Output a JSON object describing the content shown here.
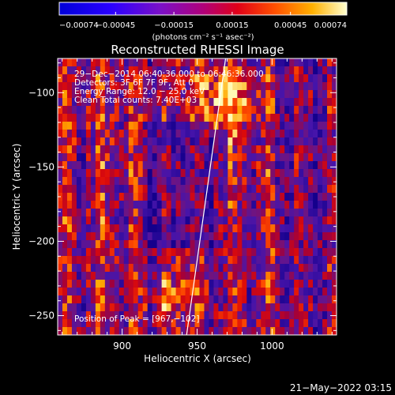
{
  "chart_data": {
    "type": "heatmap",
    "title": "Reconstructed RHESSI Image",
    "xlabel": "Heliocentric X (arcsec)",
    "ylabel": "Heliocentric Y (arcsec)",
    "xlim": [
      857,
      1043
    ],
    "ylim": [
      -263,
      -77
    ],
    "x_ticks": [
      900,
      950,
      1000
    ],
    "y_ticks": [
      -100,
      -150,
      -200,
      -250
    ],
    "x_tick_labels": [
      "900",
      "950",
      "1000"
    ],
    "y_tick_labels": [
      "−100",
      "−150",
      "−200",
      "−250"
    ],
    "colorbar": {
      "range": [
        -0.00074,
        0.00074
      ],
      "tick_values": [
        -0.00074,
        -0.00045,
        -0.00015,
        0.00015,
        0.00045,
        0.00074
      ],
      "tick_labels": [
        "−0.00074",
        "−0.00045",
        "−0.00015",
        "0.00015",
        "0.00045",
        "0.00074"
      ],
      "units_label": "(photons cm⁻² s⁻¹ asec⁻²)"
    },
    "annotations": [
      "29−Dec−2014 06:40:36.000 to 06:46:36.000",
      "Detectors: 3F 6F 7F 9F, Att 0",
      "Energy Range: 12.0 − 25.0 keV",
      "Clean     Total counts: 7.40E+03"
    ],
    "peak_label": "Position of Peak = [967,−102]",
    "peak": [
      967,
      -102
    ],
    "limb_line": [
      [
        943,
        -263
      ],
      [
        969,
        -77
      ]
    ]
  },
  "footer": {
    "timestamp": "21−May−2022 03:15"
  }
}
